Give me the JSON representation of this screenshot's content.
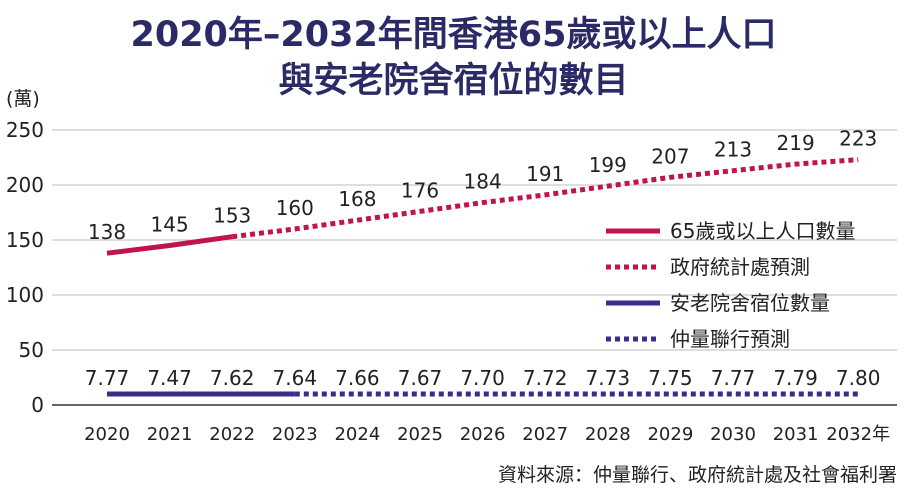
{
  "page": {
    "title_line1": "2020年–2032年間香港65歲或以上人口",
    "title_line2": "與安老院舍宿位的數目",
    "unit_label": "(萬)",
    "source": "資料來源：仲量聯行、政府統計處及社會福利署"
  },
  "chart_data": {
    "type": "line",
    "title": "2020年–2032年間香港65歲或以上人口與安老院舍宿位的數目",
    "ylabel": "(萬)",
    "ylim": [
      0,
      250
    ],
    "yticks": [
      0,
      50,
      100,
      150,
      200,
      250
    ],
    "x": [
      "2020",
      "2021",
      "2022",
      "2023",
      "2024",
      "2025",
      "2026",
      "2027",
      "2028",
      "2029",
      "2030",
      "2031",
      "2032"
    ],
    "x_suffix": "年",
    "grid": "horizontal",
    "legend_position": "right",
    "legend": [
      "65歲或以上人口數量",
      "政府統計處預測",
      "安老院舍宿位數量",
      "仲量聯行預測"
    ],
    "series": [
      {
        "name": "65歲或以上人口數量",
        "forecast_name": "政府統計處預測",
        "color": "#c0134f",
        "actual_until_index": 2,
        "values": [
          138,
          145,
          153,
          160,
          168,
          176,
          184,
          191,
          199,
          207,
          213,
          219,
          223
        ],
        "labels": [
          "138",
          "145",
          "153",
          "160",
          "168",
          "176",
          "184",
          "191",
          "199",
          "207",
          "213",
          "219",
          "223"
        ]
      },
      {
        "name": "安老院舍宿位數量",
        "forecast_name": "仲量聯行預測",
        "color": "#3b2b8a",
        "actual_until_index": 3,
        "values": [
          7.77,
          7.47,
          7.62,
          7.64,
          7.66,
          7.67,
          7.7,
          7.72,
          7.73,
          7.75,
          7.77,
          7.79,
          7.8
        ],
        "labels": [
          "7.77",
          "7.47",
          "7.62",
          "7.64",
          "7.66",
          "7.67",
          "7.70",
          "7.72",
          "7.73",
          "7.75",
          "7.77",
          "7.79",
          "7.80"
        ]
      }
    ]
  }
}
